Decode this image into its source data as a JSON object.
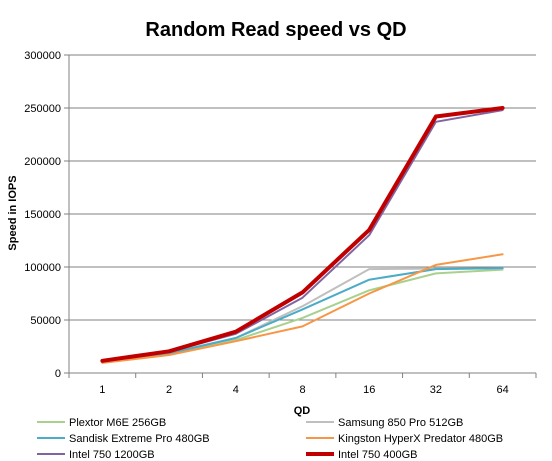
{
  "chart_data": {
    "type": "line",
    "title": "Random Read speed vs QD",
    "xlabel": "QD",
    "ylabel": "Speed in IOPS",
    "categories": [
      "1",
      "2",
      "4",
      "8",
      "16",
      "32",
      "64"
    ],
    "ylim": [
      0,
      300000
    ],
    "yticks": [
      "0",
      "50000",
      "100000",
      "150000",
      "200000",
      "250000",
      "300000"
    ],
    "grid": true,
    "legend_position": "bottom",
    "series": [
      {
        "name": "Plextor M6E 256GB",
        "color": "#a9d18e",
        "width": 2,
        "values": [
          10500,
          18000,
          31000,
          52000,
          78000,
          94000,
          97500
        ]
      },
      {
        "name": "Samsung 850 Pro 512GB",
        "color": "#bfbfbf",
        "width": 2,
        "values": [
          11000,
          19000,
          33000,
          63000,
          98000,
          98500,
          98500
        ]
      },
      {
        "name": "Sandisk Extreme Pro 480GB",
        "color": "#4bacc6",
        "width": 2,
        "values": [
          10500,
          18500,
          33000,
          60000,
          88000,
          98000,
          99000
        ]
      },
      {
        "name": "Kingston HyperX Predator 480GB",
        "color": "#f79646",
        "width": 2,
        "values": [
          9500,
          17000,
          30000,
          44000,
          75000,
          102000,
          112000
        ]
      },
      {
        "name": "Intel 750 1200GB",
        "color": "#8064a2",
        "width": 2,
        "values": [
          11000,
          20000,
          37000,
          71000,
          130000,
          237000,
          248000
        ]
      },
      {
        "name": "Intel 750 400GB",
        "color": "#c00000",
        "width": 4,
        "values": [
          11500,
          20500,
          39000,
          76000,
          135000,
          242000,
          250000
        ]
      }
    ]
  }
}
